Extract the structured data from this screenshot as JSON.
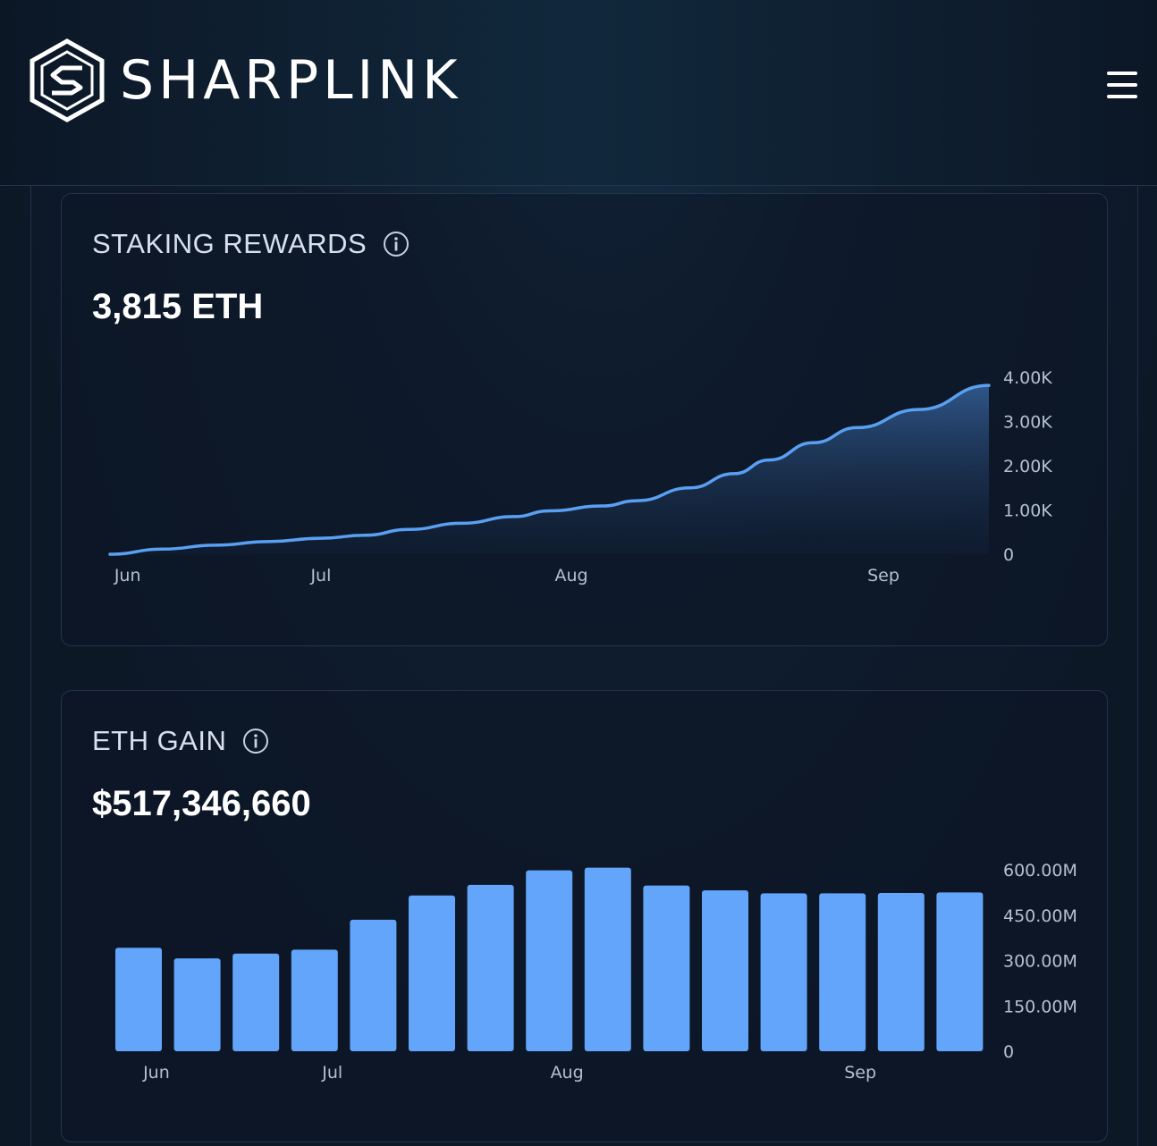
{
  "header": {
    "brand": "SHARPLINK",
    "logo_icon": "sharplink-hexagon-logo-icon",
    "menu_icon": "hamburger-menu-icon"
  },
  "colors": {
    "background": "#0d1827",
    "card_border": "#23344a",
    "accent_line": "#5aa0f2",
    "bar_fill": "#62a5fa",
    "tick_text": "#b4c0cf"
  },
  "cards": [
    {
      "title": "STAKING REWARDS",
      "info_icon": "info-circle-icon",
      "value": "3,815 ETH"
    },
    {
      "title": "ETH GAIN",
      "info_icon": "info-circle-icon",
      "value": "$517,346,660"
    }
  ],
  "chart_data": [
    {
      "type": "area",
      "x_labels": [
        "Jun",
        "Jul",
        "Aug",
        "Sep"
      ],
      "y_tick_labels": [
        "4.00K",
        "3.00K",
        "2.00K",
        "1.00K",
        "0"
      ],
      "ylim": [
        0,
        4000
      ],
      "y_ticks": [
        4000,
        3000,
        2000,
        1000,
        0
      ],
      "x_tick_positions": [
        0.02,
        0.24,
        0.525,
        0.88
      ],
      "points": [
        {
          "x": 0.0,
          "y": 0
        },
        {
          "x": 0.06,
          "y": 115
        },
        {
          "x": 0.12,
          "y": 205
        },
        {
          "x": 0.18,
          "y": 285
        },
        {
          "x": 0.24,
          "y": 360
        },
        {
          "x": 0.29,
          "y": 430
        },
        {
          "x": 0.34,
          "y": 560
        },
        {
          "x": 0.4,
          "y": 700
        },
        {
          "x": 0.46,
          "y": 850
        },
        {
          "x": 0.5,
          "y": 980
        },
        {
          "x": 0.56,
          "y": 1090
        },
        {
          "x": 0.6,
          "y": 1210
        },
        {
          "x": 0.66,
          "y": 1500
        },
        {
          "x": 0.71,
          "y": 1820
        },
        {
          "x": 0.75,
          "y": 2130
        },
        {
          "x": 0.8,
          "y": 2520
        },
        {
          "x": 0.85,
          "y": 2860
        },
        {
          "x": 0.92,
          "y": 3270
        },
        {
          "x": 1.0,
          "y": 3815
        }
      ],
      "grid": false
    },
    {
      "type": "bar",
      "x_labels": [
        "Jun",
        "Jul",
        "Aug",
        "Sep"
      ],
      "x_label_bar_index": [
        0.7,
        3.7,
        7.7,
        12.7
      ],
      "y_tick_labels": [
        "600.00M",
        "450.00M",
        "300.00M",
        "150.00M",
        "0"
      ],
      "ylim": [
        0,
        600
      ],
      "y_ticks": [
        600,
        450,
        300,
        150,
        0
      ],
      "values": [
        342,
        307,
        323,
        336,
        435,
        515,
        550,
        598,
        607,
        548,
        532,
        522,
        522,
        523,
        525
      ],
      "grid": false
    }
  ]
}
